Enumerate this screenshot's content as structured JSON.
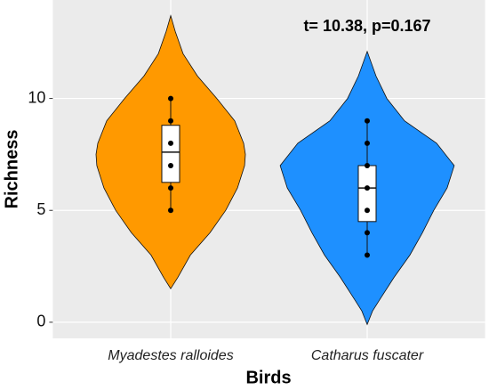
{
  "chart_data": {
    "type": "violin",
    "title": "t= 10.38, p=0.167",
    "x_label": "Birds",
    "y_label": "Richness",
    "categories": [
      "Myadestes ralloides",
      "Catharus fuscater"
    ],
    "ylim": [
      -0.72,
      14.4
    ],
    "yticks": [
      0,
      5,
      10
    ],
    "grid": true,
    "violins": [
      {
        "color": "#FF9900",
        "density_y": [
          1.5,
          2,
          3,
          4,
          5,
          6,
          7,
          7.5,
          8,
          9,
          10,
          11,
          12,
          13,
          13.7
        ],
        "density_width": [
          0,
          0.036,
          0.1,
          0.2,
          0.28,
          0.34,
          0.376,
          0.38,
          0.371,
          0.326,
          0.235,
          0.136,
          0.063,
          0.023,
          0
        ],
        "box": {
          "whisker_low": 5,
          "q1": 6.25,
          "median": 7.6,
          "q3": 8.8,
          "whisker_high": 10
        },
        "points": [
          5,
          6,
          7,
          8,
          9,
          10
        ]
      },
      {
        "color": "#1E90FF",
        "density_y": [
          -0.1,
          0.5,
          1,
          2,
          3,
          4,
          5,
          6,
          7,
          8,
          9,
          10,
          11,
          12.1
        ],
        "density_width": [
          0,
          0.027,
          0.063,
          0.136,
          0.217,
          0.281,
          0.339,
          0.407,
          0.443,
          0.353,
          0.19,
          0.1,
          0.045,
          0
        ],
        "box": {
          "whisker_low": 3,
          "q1": 4.5,
          "median": 6,
          "q3": 7,
          "whisker_high": 9
        },
        "points": [
          3,
          4,
          5,
          6,
          7,
          8,
          9
        ]
      }
    ]
  }
}
